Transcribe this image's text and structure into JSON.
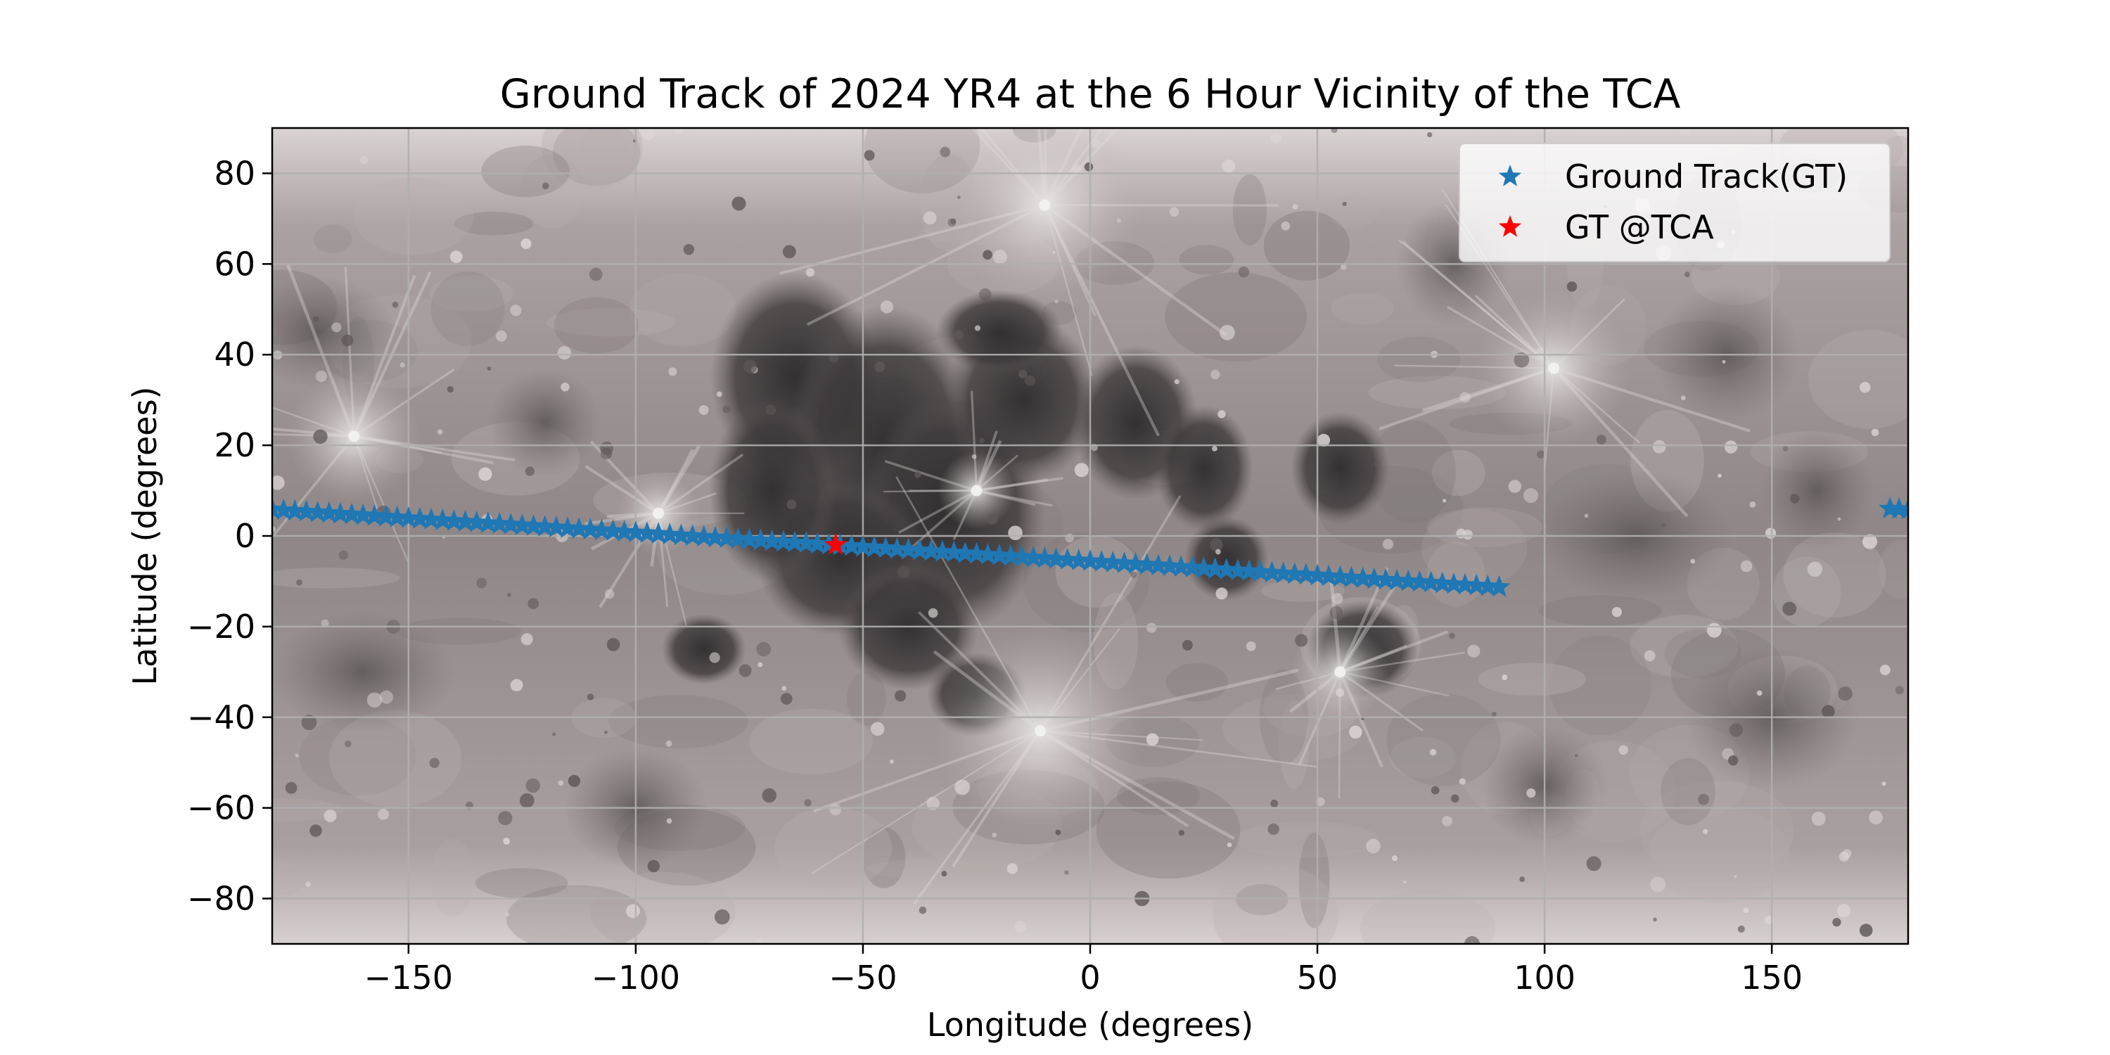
{
  "chart_data": {
    "type": "scatter",
    "title": "Ground Track of 2024 YR4 at the 6 Hour Vicinity of the TCA",
    "xlabel": "Longitude (degrees)",
    "ylabel": "Latitude (degrees)",
    "xlim": [
      -180,
      180
    ],
    "ylim": [
      -90,
      90
    ],
    "xticks": [
      -150,
      -100,
      -50,
      0,
      50,
      100,
      150
    ],
    "yticks": [
      -80,
      -60,
      -40,
      -20,
      0,
      20,
      40,
      60,
      80
    ],
    "xtick_labels": [
      "−150",
      "−100",
      "−50",
      "0",
      "50",
      "100",
      "150"
    ],
    "ytick_labels": [
      "−80",
      "−60",
      "−40",
      "−20",
      "0",
      "20",
      "40",
      "60",
      "80"
    ],
    "grid": true,
    "legend_position": "top-right",
    "background": "lunar surface map",
    "series": [
      {
        "name": "Ground Track(GT)",
        "color": "#1f77b4",
        "marker": "star",
        "segments": [
          {
            "x_start": -180,
            "x_end": 90,
            "y_start": 5.8,
            "y_end": -11.3,
            "step": 2.5
          },
          {
            "x_start": 176,
            "x_end": 180,
            "y_start": 6.0,
            "y_end": 5.8,
            "step": 2.0
          }
        ]
      },
      {
        "name": "GT @TCA",
        "color": "#ff0000",
        "marker": "star",
        "points": [
          {
            "x": -56,
            "y": -2.0
          }
        ]
      }
    ]
  }
}
